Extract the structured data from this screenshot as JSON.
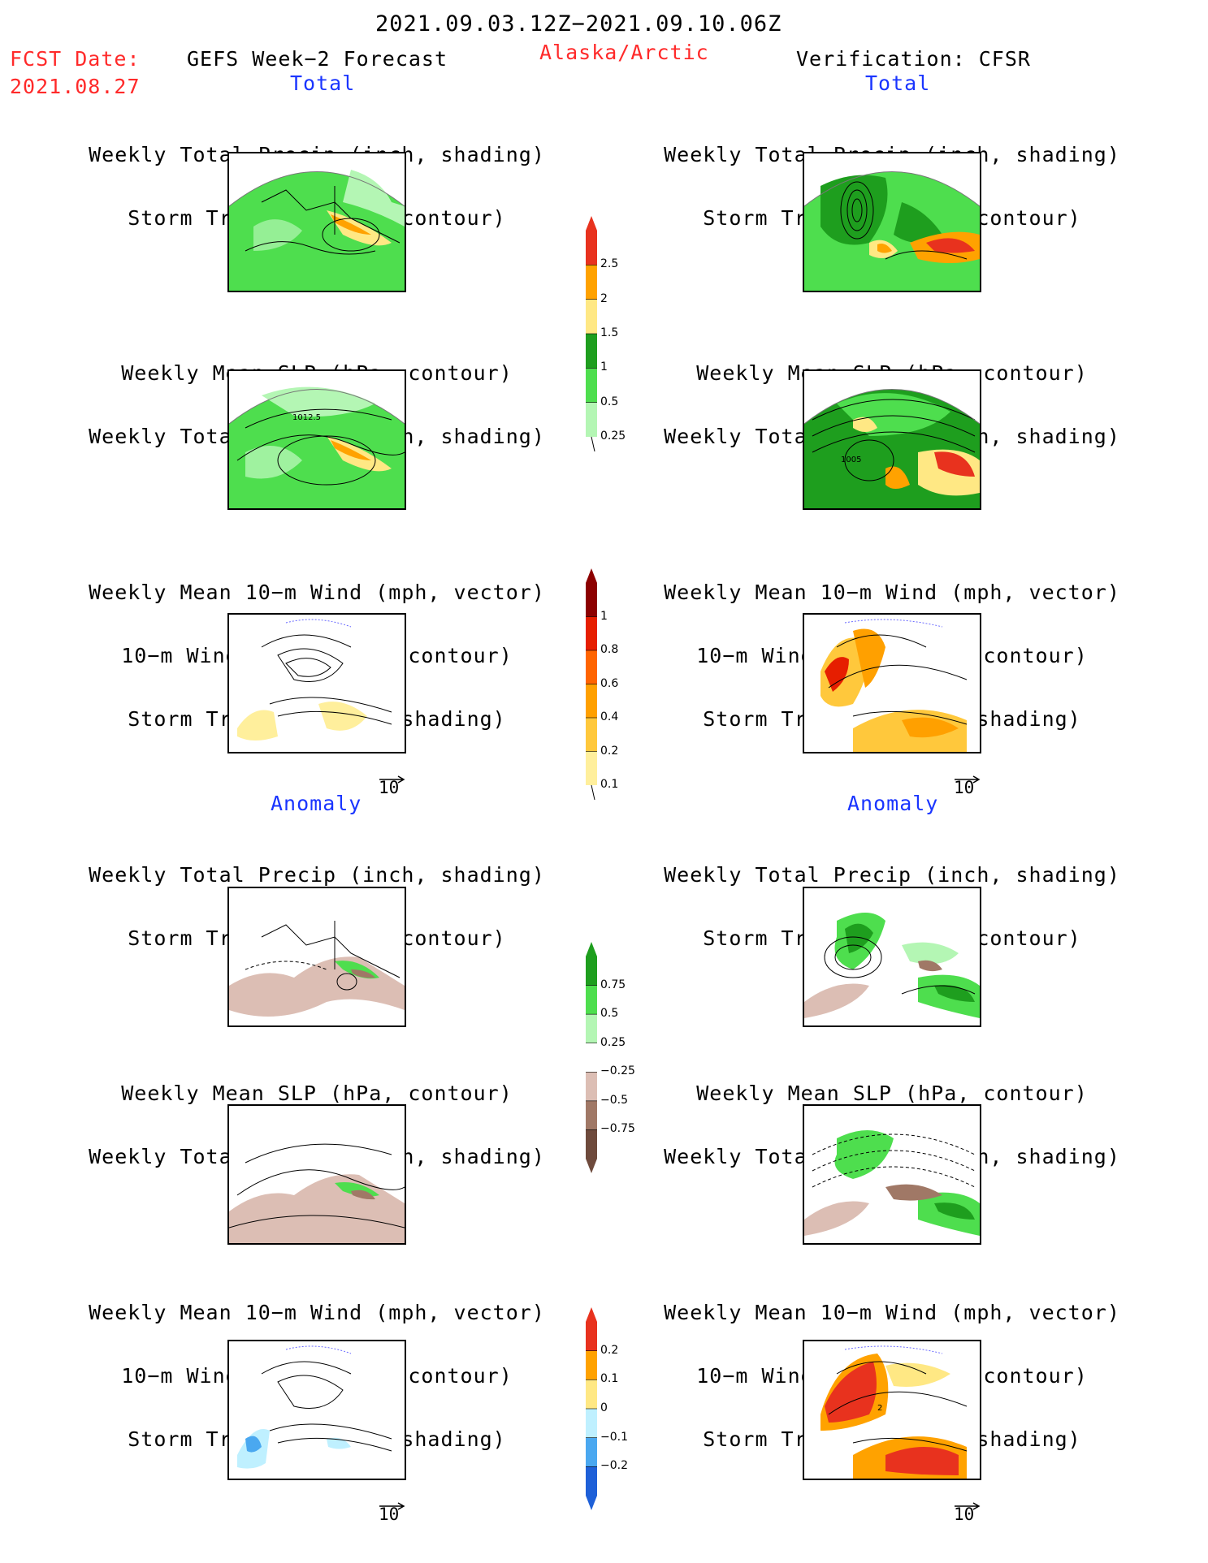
{
  "header": {
    "date_range": "2021.09.03.12Z−2021.09.10.06Z",
    "fcst_label": "FCST Date:",
    "fcst_date": "2021.08.27",
    "forecast_title": "GEFS Week−2 Forecast",
    "region": "Alaska/Arctic",
    "verification": "Verification: CFSR"
  },
  "sections": {
    "total": "Total",
    "anomaly": "Anomaly"
  },
  "panel_titles": {
    "precip_track": [
      "Weekly Total Precip (inch, shading)",
      "Storm Track Density (contour)"
    ],
    "slp_precip": [
      "Weekly Mean SLP (hPa, contour)",
      "Weekly Total Precip (inch, shading)"
    ],
    "wind_track": [
      "Weekly Mean 10−m Wind (mph, vector)",
      "10−m Wind Speed (mph, contour)",
      "Storm Track Density (shading)"
    ]
  },
  "contour_labels": {
    "fcst_slp_total": "1012.5",
    "verif_slp_total": "1005",
    "verif_wind_anom": "2"
  },
  "vector_reference": "10",
  "colorbars": {
    "precip_total": {
      "labels": [
        "2.5",
        "2",
        "1.5",
        "1",
        "0.5",
        "0.25"
      ],
      "colors": [
        "#e8321e",
        "#ffa200",
        "#ffe884",
        "#1e9e1e",
        "#4ede4e",
        "#b4f6b4"
      ]
    },
    "storm_total": {
      "labels": [
        "1",
        "0.8",
        "0.6",
        "0.4",
        "0.2",
        "0.1"
      ],
      "colors": [
        "#8c0000",
        "#e61e00",
        "#ff6400",
        "#ffa000",
        "#ffc83c",
        "#ffef9c"
      ]
    },
    "precip_anom": {
      "labels": [
        "0.75",
        "0.5",
        "0.25",
        "−0.25",
        "−0.5",
        "−0.75"
      ],
      "colors": [
        "#1e9e1e",
        "#4ede4e",
        "#b4f6b4",
        "#ffffff",
        "#dcbeb4",
        "#a07866",
        "#6e4a3c"
      ]
    },
    "storm_anom": {
      "labels": [
        "0.2",
        "0.1",
        "0",
        "−0.1",
        "−0.2"
      ],
      "colors": [
        "#e8321e",
        "#ffa200",
        "#ffe884",
        "#bff0ff",
        "#4aa8f0",
        "#1e60d8"
      ]
    }
  }
}
